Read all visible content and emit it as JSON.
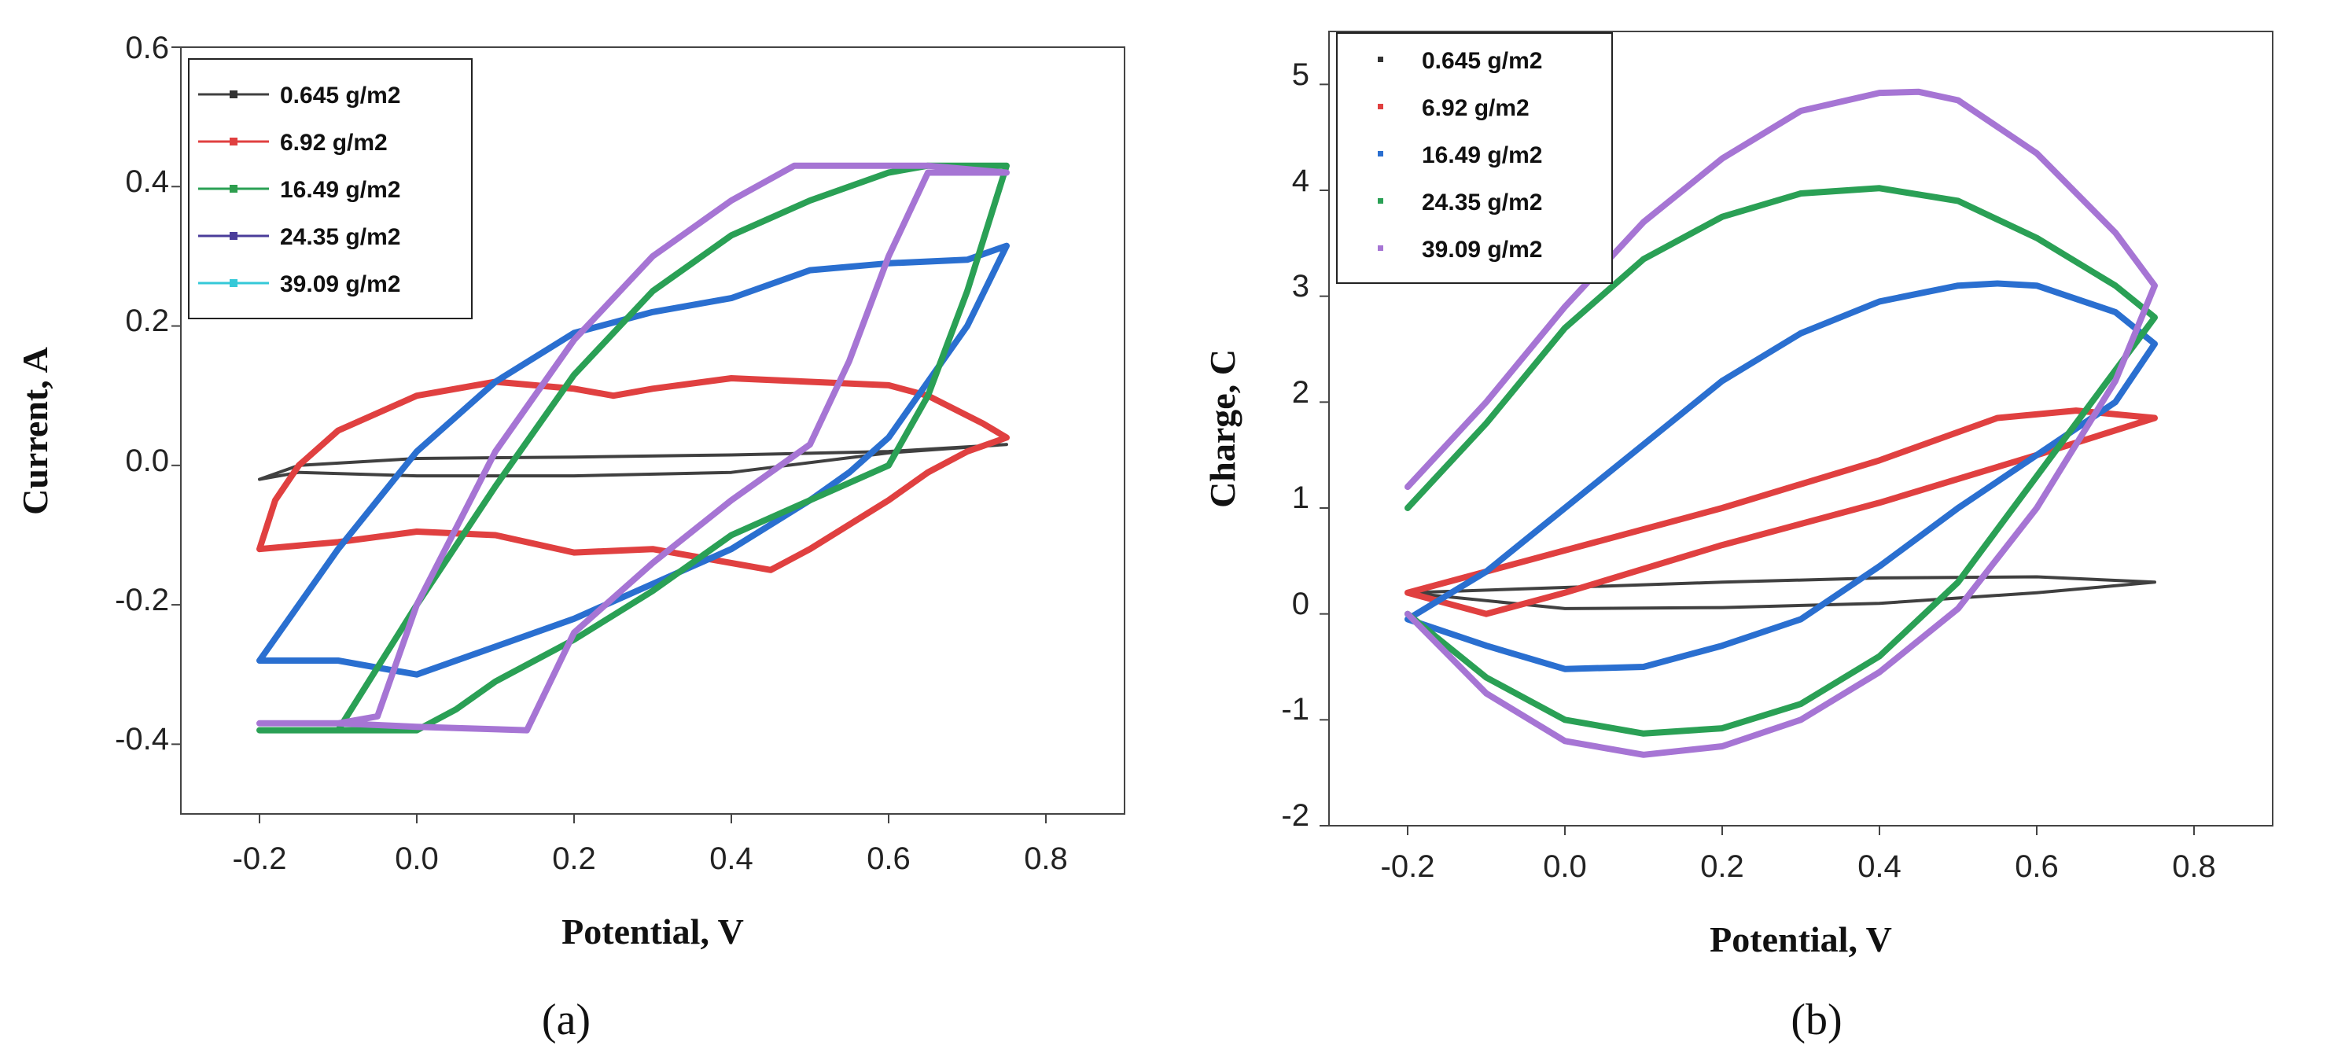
{
  "chart_data": [
    {
      "type": "line",
      "caption": "(a)",
      "xlabel": "Potential, V",
      "ylabel": "Current, A",
      "xlim": [
        -0.3,
        0.9
      ],
      "ylim": [
        -0.5,
        0.6
      ],
      "xticks": [
        -0.2,
        0.0,
        0.2,
        0.4,
        0.6,
        0.8
      ],
      "xtick_labels": [
        "-0.2",
        "0.0",
        "0.2",
        "0.4",
        "0.6",
        "0.8"
      ],
      "yticks": [
        -0.4,
        -0.2,
        0.0,
        0.2,
        0.4,
        0.6
      ],
      "ytick_labels": [
        "-0.4",
        "-0.2",
        "0.0",
        "0.2",
        "0.4",
        "0.6"
      ],
      "legend_position": "top-left",
      "legend_marker_colors": [
        "#333333",
        "#e04040",
        "#2e9e4e",
        "#4a3c9a",
        "#35c9d8"
      ],
      "series": [
        {
          "name": "0.645 g/m2",
          "color": "#404040",
          "x": [
            -0.2,
            -0.15,
            0.0,
            0.2,
            0.4,
            0.6,
            0.75,
            0.6,
            0.4,
            0.2,
            0.0,
            -0.15,
            -0.2
          ],
          "y": [
            -0.02,
            0.0,
            0.01,
            0.012,
            0.015,
            0.02,
            0.03,
            0.018,
            -0.01,
            -0.015,
            -0.015,
            -0.01,
            -0.02
          ]
        },
        {
          "name": "6.92 g/m2",
          "color": "#e04040",
          "x": [
            -0.2,
            -0.18,
            -0.15,
            -0.1,
            0.0,
            0.1,
            0.2,
            0.25,
            0.3,
            0.4,
            0.5,
            0.6,
            0.65,
            0.72,
            0.75,
            0.7,
            0.65,
            0.6,
            0.5,
            0.45,
            0.4,
            0.3,
            0.2,
            0.1,
            0.0,
            -0.1,
            -0.2
          ],
          "y": [
            -0.12,
            -0.05,
            0.0,
            0.05,
            0.1,
            0.12,
            0.11,
            0.1,
            0.11,
            0.125,
            0.12,
            0.115,
            0.1,
            0.06,
            0.04,
            0.02,
            -0.01,
            -0.05,
            -0.12,
            -0.15,
            -0.14,
            -0.12,
            -0.125,
            -0.1,
            -0.095,
            -0.11,
            -0.12
          ]
        },
        {
          "name": "16.49 g/m2",
          "color": "#2a6fd0",
          "x": [
            -0.2,
            -0.15,
            -0.1,
            0.0,
            0.1,
            0.2,
            0.3,
            0.4,
            0.5,
            0.6,
            0.7,
            0.75,
            0.7,
            0.6,
            0.55,
            0.5,
            0.4,
            0.3,
            0.2,
            0.1,
            0.0,
            -0.05,
            -0.1,
            -0.2
          ],
          "y": [
            -0.28,
            -0.2,
            -0.12,
            0.02,
            0.12,
            0.19,
            0.22,
            0.24,
            0.28,
            0.29,
            0.295,
            0.315,
            0.2,
            0.04,
            -0.01,
            -0.05,
            -0.12,
            -0.17,
            -0.22,
            -0.26,
            -0.3,
            -0.29,
            -0.28,
            -0.28
          ]
        },
        {
          "name": "24.35 g/m2",
          "color": "#2aa055",
          "x": [
            -0.2,
            -0.1,
            0.0,
            0.1,
            0.2,
            0.3,
            0.4,
            0.5,
            0.6,
            0.65,
            0.7,
            0.75,
            0.7,
            0.65,
            0.6,
            0.5,
            0.4,
            0.3,
            0.2,
            0.1,
            0.05,
            0.0,
            -0.1,
            -0.2
          ],
          "y": [
            -0.38,
            -0.38,
            -0.2,
            -0.03,
            0.13,
            0.25,
            0.33,
            0.38,
            0.42,
            0.43,
            0.43,
            0.43,
            0.25,
            0.1,
            0.0,
            -0.05,
            -0.1,
            -0.18,
            -0.25,
            -0.31,
            -0.35,
            -0.38,
            -0.38,
            -0.38
          ]
        },
        {
          "name": "39.09 g/m2",
          "color": "#a675d4",
          "x": [
            -0.2,
            -0.1,
            -0.05,
            0.0,
            0.1,
            0.2,
            0.3,
            0.4,
            0.48,
            0.55,
            0.65,
            0.75,
            0.65,
            0.6,
            0.55,
            0.5,
            0.4,
            0.3,
            0.2,
            0.14,
            0.0,
            -0.1,
            -0.2
          ],
          "y": [
            -0.37,
            -0.37,
            -0.36,
            -0.2,
            0.02,
            0.18,
            0.3,
            0.38,
            0.43,
            0.43,
            0.43,
            0.42,
            0.42,
            0.3,
            0.15,
            0.03,
            -0.05,
            -0.14,
            -0.24,
            -0.38,
            -0.375,
            -0.37,
            -0.37
          ]
        }
      ]
    },
    {
      "type": "line",
      "caption": "(b)",
      "xlabel": "Potential, V",
      "ylabel": "Charge, C",
      "xlim": [
        -0.3,
        0.9
      ],
      "ylim": [
        -2,
        5.5
      ],
      "xticks": [
        -0.2,
        0.0,
        0.2,
        0.4,
        0.6,
        0.8
      ],
      "xtick_labels": [
        "-0.2",
        "0.0",
        "0.2",
        "0.4",
        "0.6",
        "0.8"
      ],
      "yticks": [
        -2,
        -1,
        0,
        1,
        2,
        3,
        4,
        5
      ],
      "ytick_labels": [
        "-2",
        "-1",
        "0",
        "1",
        "2",
        "3",
        "4",
        "5"
      ],
      "legend_position": "top-left",
      "legend_marker_colors": [
        "#333333",
        "#e04040",
        "#2a6fd0",
        "#2aa055",
        "#a675d4"
      ],
      "series": [
        {
          "name": "0.645 g/m2",
          "color": "#404040",
          "x": [
            -0.2,
            0.0,
            0.2,
            0.4,
            0.6,
            0.75,
            0.6,
            0.4,
            0.2,
            0.0,
            -0.2
          ],
          "y": [
            0.2,
            0.25,
            0.3,
            0.34,
            0.35,
            0.3,
            0.2,
            0.1,
            0.06,
            0.05,
            0.2
          ]
        },
        {
          "name": "6.92 g/m2",
          "color": "#e04040",
          "x": [
            -0.2,
            0.0,
            0.2,
            0.4,
            0.55,
            0.65,
            0.75,
            0.6,
            0.4,
            0.2,
            0.0,
            -0.1,
            -0.2
          ],
          "y": [
            0.2,
            0.6,
            1.0,
            1.45,
            1.85,
            1.92,
            1.85,
            1.5,
            1.05,
            0.65,
            0.2,
            0.0,
            0.2
          ]
        },
        {
          "name": "16.49 g/m2",
          "color": "#2a6fd0",
          "x": [
            -0.2,
            -0.1,
            0.0,
            0.1,
            0.2,
            0.3,
            0.4,
            0.5,
            0.55,
            0.6,
            0.7,
            0.75,
            0.7,
            0.6,
            0.5,
            0.4,
            0.3,
            0.2,
            0.1,
            0.0,
            -0.1,
            -0.2
          ],
          "y": [
            -0.05,
            0.4,
            1.0,
            1.6,
            2.2,
            2.65,
            2.95,
            3.1,
            3.12,
            3.1,
            2.85,
            2.55,
            2.0,
            1.5,
            1.0,
            0.45,
            -0.05,
            -0.3,
            -0.5,
            -0.52,
            -0.3,
            -0.05
          ]
        },
        {
          "name": "24.35 g/m2",
          "color": "#2aa055",
          "x": [
            -0.2,
            -0.1,
            0.0,
            0.1,
            0.2,
            0.3,
            0.4,
            0.5,
            0.6,
            0.7,
            0.75,
            0.7,
            0.6,
            0.5,
            0.4,
            0.3,
            0.2,
            0.1,
            0.0,
            -0.1,
            -0.2
          ],
          "y": [
            1.0,
            1.8,
            2.7,
            3.35,
            3.75,
            3.97,
            4.02,
            3.9,
            3.55,
            3.1,
            2.8,
            2.3,
            1.3,
            0.3,
            -0.4,
            -0.85,
            -1.08,
            -1.13,
            -1.0,
            -0.6,
            0.0
          ]
        },
        {
          "name": "39.09 g/m2",
          "color": "#a675d4",
          "x": [
            -0.2,
            -0.1,
            0.0,
            0.1,
            0.2,
            0.3,
            0.4,
            0.45,
            0.5,
            0.6,
            0.7,
            0.75,
            0.7,
            0.6,
            0.5,
            0.4,
            0.3,
            0.2,
            0.1,
            0.0,
            -0.1,
            -0.2
          ],
          "y": [
            1.2,
            2.0,
            2.9,
            3.7,
            4.3,
            4.75,
            4.92,
            4.93,
            4.85,
            4.35,
            3.6,
            3.1,
            2.2,
            1.0,
            0.05,
            -0.55,
            -1.0,
            -1.25,
            -1.33,
            -1.2,
            -0.75,
            0.0
          ]
        }
      ]
    }
  ]
}
